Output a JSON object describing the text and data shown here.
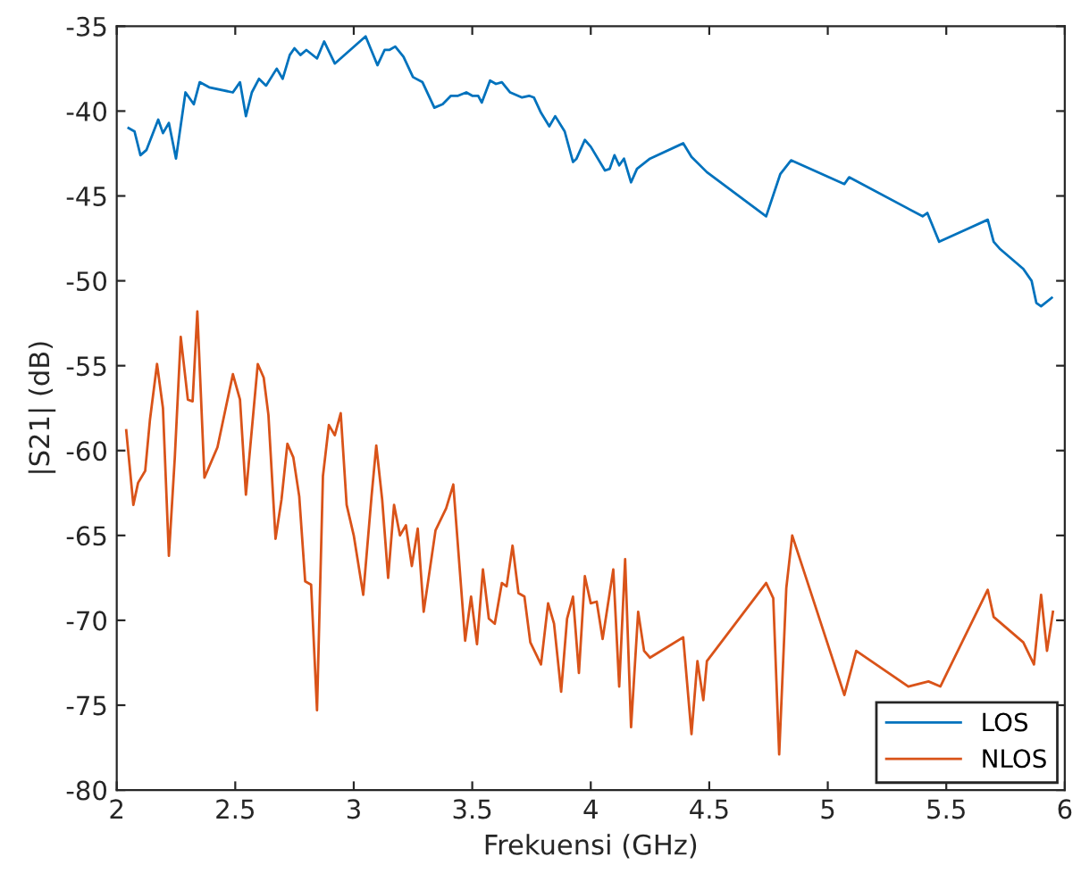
{
  "chart_data": {
    "type": "line",
    "xlabel": "Frekuensi (GHz)",
    "ylabel": "|S21| (dB)",
    "xlim": [
      2,
      6
    ],
    "ylim": [
      -80,
      -35
    ],
    "xticks": [
      2,
      2.5,
      3,
      3.5,
      4,
      4.5,
      5,
      5.5,
      6
    ],
    "yticks": [
      -80,
      -75,
      -70,
      -65,
      -60,
      -55,
      -50,
      -45,
      -40,
      -35
    ],
    "legend": "bottom right",
    "grid": false,
    "marker": "none",
    "line_style": "solid",
    "series": [
      {
        "name": "LOS",
        "color": "#0072bd",
        "x": [
          2.05,
          2.075,
          2.1,
          2.125,
          2.175,
          2.195,
          2.22,
          2.25,
          2.29,
          2.325,
          2.35,
          2.39,
          2.49,
          2.52,
          2.545,
          2.57,
          2.6,
          2.63,
          2.675,
          2.7,
          2.73,
          2.75,
          2.775,
          2.8,
          2.845,
          2.875,
          2.92,
          3.05,
          3.1,
          3.13,
          3.15,
          3.175,
          3.21,
          3.25,
          3.29,
          3.34,
          3.375,
          3.41,
          3.44,
          3.475,
          3.5,
          3.525,
          3.54,
          3.575,
          3.6,
          3.625,
          3.66,
          3.71,
          3.74,
          3.76,
          3.79,
          3.825,
          3.85,
          3.89,
          3.925,
          3.94,
          3.975,
          4.0,
          4.06,
          4.08,
          4.1,
          4.12,
          4.14,
          4.17,
          4.195,
          4.25,
          4.39,
          4.425,
          4.49,
          4.74,
          4.8,
          4.845,
          5.07,
          5.09,
          5.4,
          5.42,
          5.47,
          5.675,
          5.7,
          5.725,
          5.825,
          5.86,
          5.88,
          5.9,
          5.945
        ],
        "values": [
          -41.0,
          -41.2,
          -42.6,
          -42.3,
          -40.5,
          -41.3,
          -40.7,
          -42.8,
          -38.9,
          -39.6,
          -38.3,
          -38.6,
          -38.9,
          -38.3,
          -40.3,
          -38.9,
          -38.1,
          -38.5,
          -37.5,
          -38.1,
          -36.7,
          -36.3,
          -36.7,
          -36.4,
          -36.9,
          -35.9,
          -37.2,
          -35.6,
          -37.3,
          -36.4,
          -36.4,
          -36.2,
          -36.8,
          -38.0,
          -38.3,
          -39.8,
          -39.6,
          -39.1,
          -39.1,
          -38.9,
          -39.1,
          -39.1,
          -39.5,
          -38.2,
          -38.4,
          -38.3,
          -38.9,
          -39.2,
          -39.1,
          -39.2,
          -40.1,
          -40.9,
          -40.3,
          -41.2,
          -43.0,
          -42.8,
          -41.7,
          -42.1,
          -43.5,
          -43.4,
          -42.6,
          -43.2,
          -42.8,
          -44.2,
          -43.4,
          -42.8,
          -41.9,
          -42.7,
          -43.6,
          -46.2,
          -43.7,
          -42.9,
          -44.3,
          -43.9,
          -46.2,
          -46.0,
          -47.7,
          -46.4,
          -47.7,
          -48.1,
          -49.3,
          -50.0,
          -51.3,
          -51.5,
          -51.0
        ]
      },
      {
        "name": "NLOS",
        "color": "#d95319",
        "x": [
          2.04,
          2.07,
          2.09,
          2.12,
          2.14,
          2.17,
          2.195,
          2.22,
          2.245,
          2.27,
          2.3,
          2.32,
          2.34,
          2.37,
          2.425,
          2.49,
          2.52,
          2.545,
          2.595,
          2.62,
          2.64,
          2.67,
          2.695,
          2.72,
          2.745,
          2.77,
          2.795,
          2.82,
          2.845,
          2.87,
          2.895,
          2.92,
          2.945,
          2.97,
          3.0,
          3.04,
          3.075,
          3.095,
          3.12,
          3.145,
          3.17,
          3.195,
          3.22,
          3.245,
          3.27,
          3.295,
          3.345,
          3.39,
          3.42,
          3.47,
          3.495,
          3.52,
          3.545,
          3.57,
          3.595,
          3.625,
          3.645,
          3.67,
          3.695,
          3.72,
          3.745,
          3.79,
          3.82,
          3.845,
          3.875,
          3.9,
          3.925,
          3.95,
          3.975,
          4.0,
          4.025,
          4.05,
          4.095,
          4.12,
          4.145,
          4.17,
          4.2,
          4.225,
          4.25,
          4.39,
          4.425,
          4.45,
          4.475,
          4.49,
          4.74,
          4.77,
          4.795,
          4.825,
          4.85,
          5.07,
          5.12,
          5.34,
          5.425,
          5.475,
          5.675,
          5.7,
          5.825,
          5.87,
          5.9,
          5.925,
          5.95
        ],
        "values": [
          -58.8,
          -63.2,
          -61.9,
          -61.2,
          -58.2,
          -54.9,
          -57.5,
          -66.2,
          -60.4,
          -53.3,
          -57.0,
          -57.1,
          -51.8,
          -61.6,
          -59.8,
          -55.5,
          -57.0,
          -62.6,
          -54.9,
          -55.7,
          -57.9,
          -65.2,
          -62.9,
          -59.6,
          -60.4,
          -62.7,
          -67.7,
          -67.9,
          -75.3,
          -61.5,
          -58.5,
          -59.1,
          -57.8,
          -63.2,
          -65.0,
          -68.5,
          -62.7,
          -59.7,
          -62.9,
          -67.5,
          -63.2,
          -65.0,
          -64.4,
          -66.8,
          -64.6,
          -69.5,
          -64.7,
          -63.4,
          -62.0,
          -71.2,
          -68.6,
          -71.4,
          -67.0,
          -69.9,
          -70.2,
          -67.8,
          -68.0,
          -65.6,
          -68.4,
          -68.6,
          -71.3,
          -72.6,
          -69.0,
          -70.2,
          -74.2,
          -69.9,
          -68.6,
          -73.1,
          -67.4,
          -69.0,
          -68.9,
          -71.1,
          -67.0,
          -73.9,
          -66.4,
          -76.3,
          -69.5,
          -71.8,
          -72.2,
          -71.0,
          -76.7,
          -72.4,
          -74.7,
          -72.4,
          -67.8,
          -68.7,
          -77.9,
          -68.1,
          -65.0,
          -74.4,
          -71.8,
          -73.9,
          -73.6,
          -73.9,
          -68.2,
          -69.8,
          -71.3,
          -72.6,
          -68.5,
          -71.8,
          -69.5
        ]
      }
    ]
  }
}
